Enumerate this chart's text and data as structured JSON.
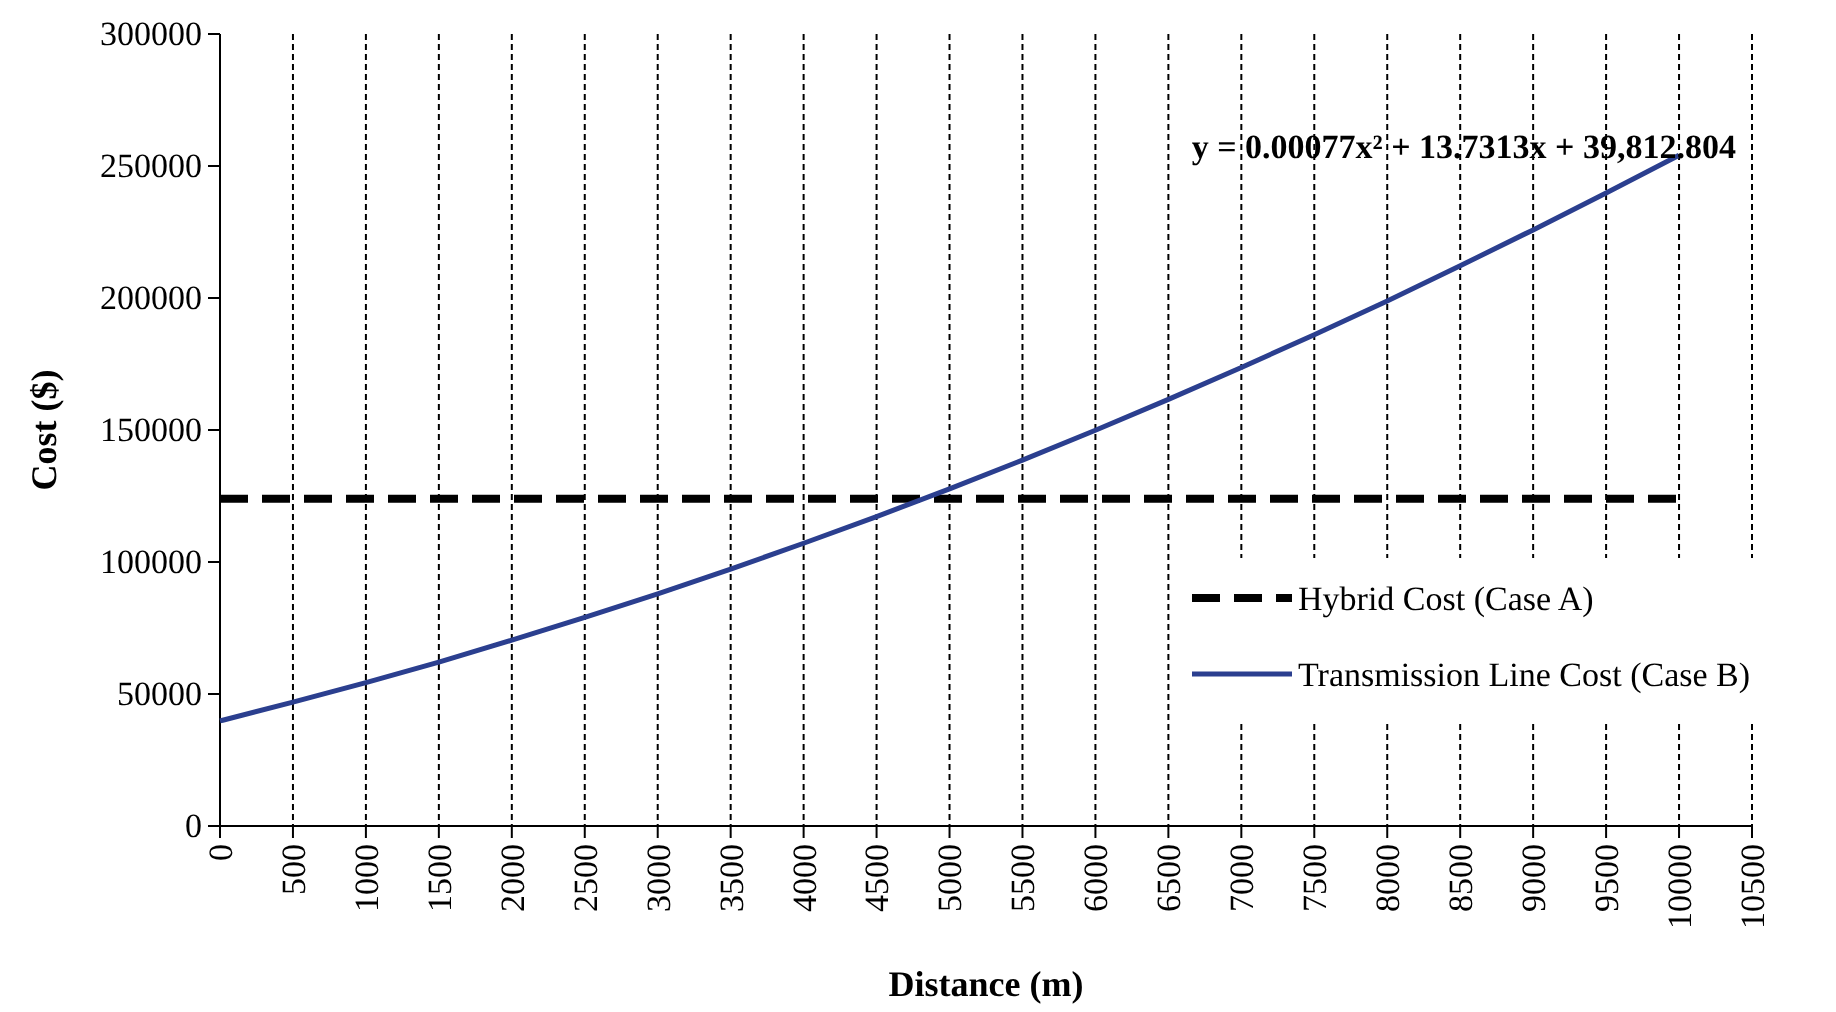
{
  "chart_data": {
    "type": "line",
    "xlabel": "Distance  (m)",
    "ylabel": "Cost  ($)",
    "xlim": [
      0,
      10500
    ],
    "xticks": [
      0,
      500,
      1000,
      1500,
      2000,
      2500,
      3000,
      3500,
      4000,
      4500,
      5000,
      5500,
      6000,
      6500,
      7000,
      7500,
      8000,
      8500,
      9000,
      9500,
      10000,
      10500
    ],
    "ylim": [
      0,
      300000
    ],
    "yticks": [
      0,
      50000,
      100000,
      150000,
      200000,
      250000,
      300000
    ],
    "grid": "x",
    "legend": "right",
    "marker": "none",
    "annotations": [
      "y = 0.00077x² + 13.7313x + 39,812.804"
    ],
    "series": [
      {
        "name": "Hybrid Cost (Case A)",
        "color": "#000000",
        "line_style": "dashed",
        "x": [
          0,
          10000
        ],
        "values": [
          124000,
          124000
        ]
      },
      {
        "name": "Transmission Line Cost (Case B)",
        "color": "#2b3f8f",
        "line_style": "solid",
        "x": [
          0,
          500,
          1000,
          1500,
          2000,
          2500,
          3000,
          3500,
          4000,
          4500,
          5000,
          5500,
          6000,
          6500,
          7000,
          7500,
          8000,
          8500,
          9000,
          9500,
          10000
        ],
        "values": [
          39800,
          46900,
          54300,
          62100,
          70400,
          79000,
          87900,
          97300,
          107100,
          117200,
          127700,
          138600,
          149900,
          161600,
          173700,
          186100,
          198900,
          212200,
          225800,
          239800,
          254100
        ]
      }
    ]
  }
}
